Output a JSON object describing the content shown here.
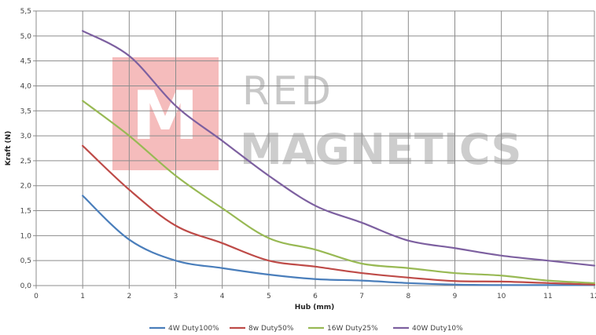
{
  "watermark": {
    "logo_letter": "M",
    "line1": "RED",
    "line2": "MAGNETICS",
    "logo_color": "#f5bcbc"
  },
  "chart_data": {
    "type": "line",
    "title": "",
    "xlabel": "Hub (mm)",
    "ylabel": "Kraft (N)",
    "xlim": [
      0,
      12
    ],
    "ylim": [
      0,
      5.5
    ],
    "x_ticks": [
      "0",
      "1",
      "2",
      "3",
      "4",
      "5",
      "6",
      "7",
      "8",
      "9",
      "10",
      "11",
      "12"
    ],
    "y_ticks": [
      "0,0",
      "0,5",
      "1,0",
      "1,5",
      "2,0",
      "2,5",
      "3,0",
      "3,5",
      "4,0",
      "4,5",
      "5,0",
      "5,5"
    ],
    "grid": true,
    "legend_position": "bottom",
    "x": [
      1,
      2,
      3,
      4,
      5,
      6,
      7,
      8,
      9,
      10,
      11,
      12
    ],
    "series": [
      {
        "name": "4W Duty100%",
        "color": "#4a7ebb",
        "values": [
          1.8,
          0.92,
          0.5,
          0.35,
          0.22,
          0.13,
          0.1,
          0.05,
          0.02,
          0.01,
          0.01,
          0.01
        ]
      },
      {
        "name": "8w Duty50%",
        "color": "#be4b48",
        "values": [
          2.8,
          1.92,
          1.2,
          0.85,
          0.5,
          0.38,
          0.25,
          0.16,
          0.09,
          0.08,
          0.05,
          0.02
        ]
      },
      {
        "name": "16W Duty25%",
        "color": "#98b954",
        "values": [
          3.7,
          3.0,
          2.2,
          1.55,
          0.95,
          0.72,
          0.44,
          0.35,
          0.25,
          0.2,
          0.1,
          0.05
        ]
      },
      {
        "name": "40W Duty10%",
        "color": "#7d60a0",
        "values": [
          5.1,
          4.6,
          3.6,
          2.9,
          2.2,
          1.6,
          1.26,
          0.9,
          0.75,
          0.6,
          0.5,
          0.4
        ]
      }
    ]
  }
}
